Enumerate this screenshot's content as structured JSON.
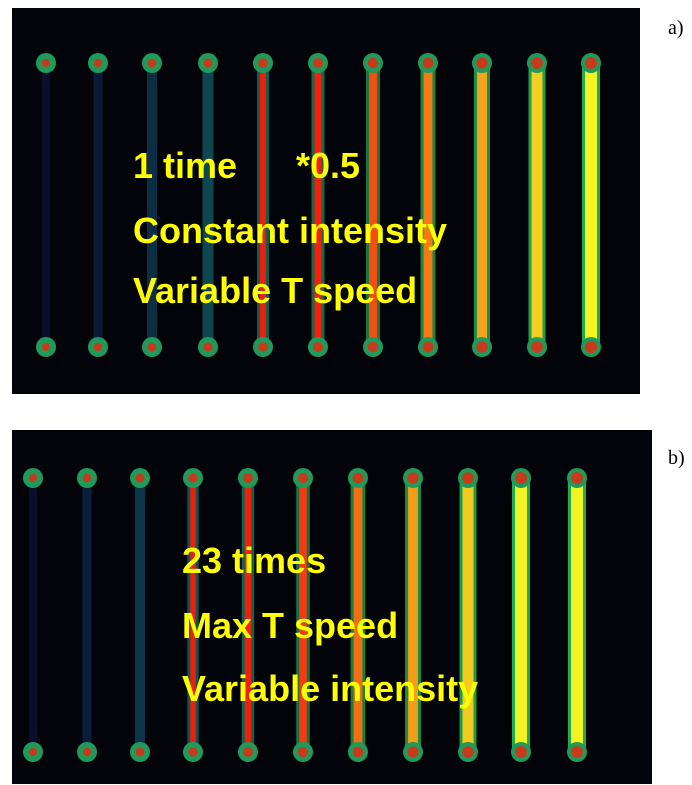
{
  "panels": [
    {
      "label": "a)",
      "lines": [
        "1 time",
        "*0.5",
        "Constant intensity",
        "Variable T speed"
      ]
    },
    {
      "label": "b)",
      "lines": [
        "23 times",
        "Max T speed",
        "Variable intensity"
      ]
    }
  ]
}
